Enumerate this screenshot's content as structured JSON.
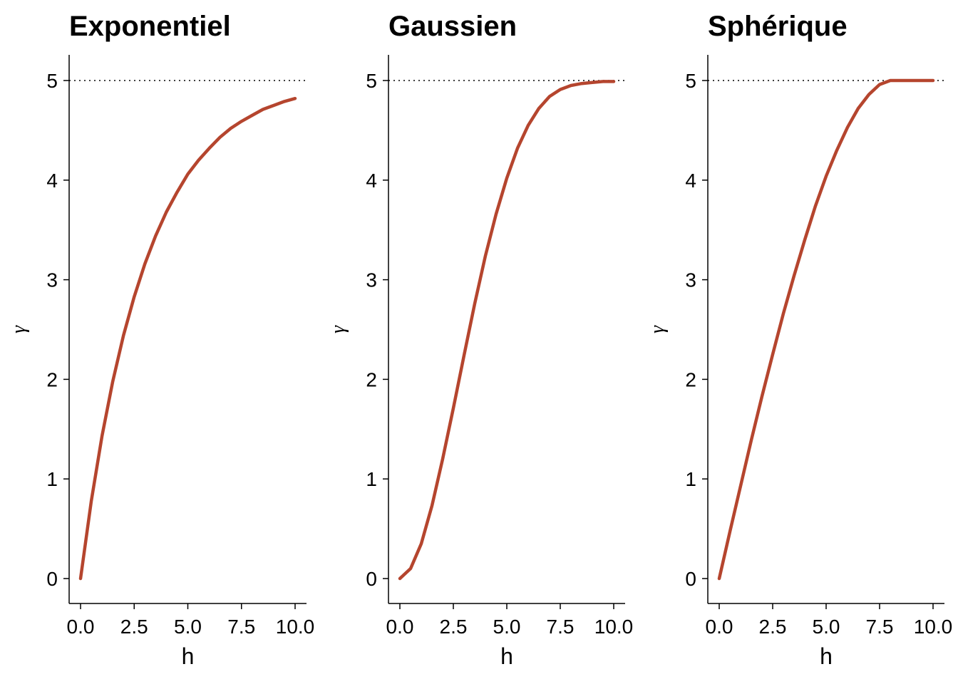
{
  "chart_data": [
    {
      "type": "line",
      "title": "Exponentiel",
      "xlabel": "h",
      "ylabel": "γ",
      "xlim": [
        0,
        10
      ],
      "ylim": [
        0,
        5
      ],
      "xticks": [
        "0.0",
        "2.5",
        "5.0",
        "7.5",
        "10.0"
      ],
      "yticks": [
        "0",
        "1",
        "2",
        "3",
        "4",
        "5"
      ],
      "line_color": "#B5452E",
      "sill": 5,
      "sill_style": "dotted",
      "grid": false,
      "series": [
        {
          "x": [
            0,
            0.5,
            1,
            1.5,
            2,
            2.5,
            3,
            3.5,
            4,
            4.5,
            5,
            5.5,
            6,
            6.5,
            7,
            7.5,
            8,
            8.5,
            9,
            9.5,
            10
          ],
          "values": [
            0,
            0.78,
            1.43,
            1.98,
            2.44,
            2.83,
            3.16,
            3.44,
            3.68,
            3.88,
            4.06,
            4.2,
            4.32,
            4.43,
            4.52,
            4.59,
            4.65,
            4.71,
            4.75,
            4.79,
            4.82
          ]
        }
      ]
    },
    {
      "type": "line",
      "title": "Gaussien",
      "xlabel": "h",
      "ylabel": "γ",
      "xlim": [
        0,
        10
      ],
      "ylim": [
        0,
        5
      ],
      "xticks": [
        "0.0",
        "2.5",
        "5.0",
        "7.5",
        "10.0"
      ],
      "yticks": [
        "0",
        "1",
        "2",
        "3",
        "4",
        "5"
      ],
      "line_color": "#B5452E",
      "sill": 5,
      "sill_style": "dotted",
      "grid": false,
      "series": [
        {
          "x": [
            0,
            0.5,
            1,
            1.5,
            2,
            2.5,
            3,
            3.5,
            4,
            4.5,
            5,
            5.5,
            6,
            6.5,
            7,
            7.5,
            8,
            8.5,
            9,
            9.5,
            10
          ],
          "values": [
            0,
            0.1,
            0.35,
            0.73,
            1.2,
            1.71,
            2.24,
            2.76,
            3.24,
            3.66,
            4.02,
            4.32,
            4.55,
            4.72,
            4.84,
            4.91,
            4.95,
            4.97,
            4.98,
            4.99,
            4.99
          ]
        }
      ]
    },
    {
      "type": "line",
      "title": "Sphérique",
      "xlabel": "h",
      "ylabel": "γ",
      "xlim": [
        0,
        10
      ],
      "ylim": [
        0,
        5
      ],
      "xticks": [
        "0.0",
        "2.5",
        "5.0",
        "7.5",
        "10.0"
      ],
      "yticks": [
        "0",
        "1",
        "2",
        "3",
        "4",
        "5"
      ],
      "line_color": "#B5452E",
      "sill": 5,
      "sill_style": "dotted",
      "grid": false,
      "series": [
        {
          "x": [
            0,
            0.5,
            1,
            1.5,
            2,
            2.5,
            3,
            3.5,
            4,
            4.5,
            5,
            5.5,
            6,
            6.5,
            7,
            7.5,
            8,
            8.5,
            9,
            9.5,
            10
          ],
          "values": [
            0,
            0.47,
            0.93,
            1.39,
            1.83,
            2.25,
            2.66,
            3.04,
            3.4,
            3.74,
            4.04,
            4.3,
            4.53,
            4.72,
            4.86,
            4.96,
            5,
            5,
            5,
            5,
            5
          ]
        }
      ]
    }
  ]
}
